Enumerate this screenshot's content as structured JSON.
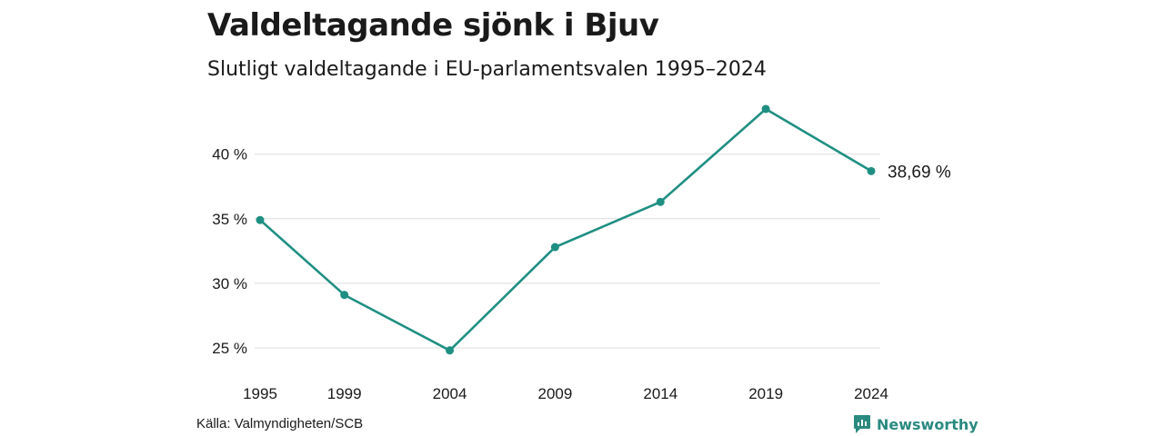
{
  "title": "Valdeltagande sjönk i Bjuv",
  "subtitle": "Slutligt valdeltagande i EU-parlamentsvalen 1995–2024",
  "source": "Källa: Valmyndigheten/SCB",
  "brand": "Newsworthy",
  "colors": {
    "line": "#1f8f82",
    "grid": "#dcdcdc",
    "brand": "#2a8a80"
  },
  "chart_data": {
    "type": "line",
    "title": "Valdeltagande sjönk i Bjuv",
    "subtitle": "Slutligt valdeltagande i EU-parlamentsvalen 1995–2024",
    "x": [
      "1995",
      "1999",
      "2004",
      "2009",
      "2014",
      "2019",
      "2024"
    ],
    "series": [
      {
        "values": [
          34.9,
          29.1,
          24.8,
          32.8,
          36.3,
          43.5,
          38.69
        ]
      }
    ],
    "yticks": [
      25,
      30,
      35,
      40
    ],
    "ytick_labels": [
      "25 %",
      "30 %",
      "35 %",
      "40 %"
    ],
    "ylim": [
      23.8,
      44.2
    ],
    "end_label": "38,69 %",
    "grid": true,
    "legend": "none"
  }
}
